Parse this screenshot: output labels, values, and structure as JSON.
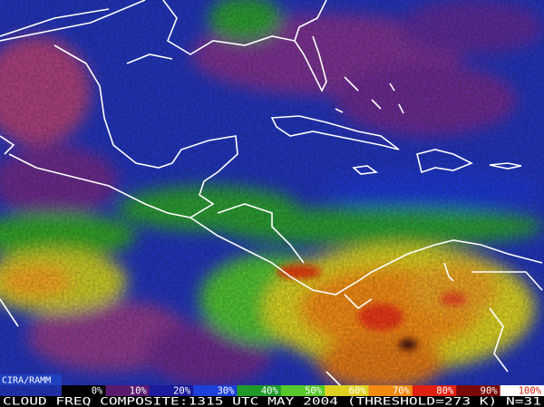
{
  "credit": "CIRA/RAMM",
  "colorbar": [
    {
      "label": "0%",
      "color": "#000000"
    },
    {
      "label": "10%",
      "color": "#5a1a6e"
    },
    {
      "label": "20%",
      "color": "#1a1a9a"
    },
    {
      "label": "30%",
      "color": "#1e40d8"
    },
    {
      "label": "40%",
      "color": "#1f9a2a"
    },
    {
      "label": "50%",
      "color": "#58c82a"
    },
    {
      "label": "60%",
      "color": "#e0d020"
    },
    {
      "label": "70%",
      "color": "#f08a10"
    },
    {
      "label": "80%",
      "color": "#e02010"
    },
    {
      "label": "90%",
      "color": "#7a0a08"
    },
    {
      "label": "100%",
      "color": "#ffffff"
    }
  ],
  "caption": "CLOUD FREQ COMPOSITE:1315 UTC MAY 2004 (THRESHOLD=273 K) N=31"
}
